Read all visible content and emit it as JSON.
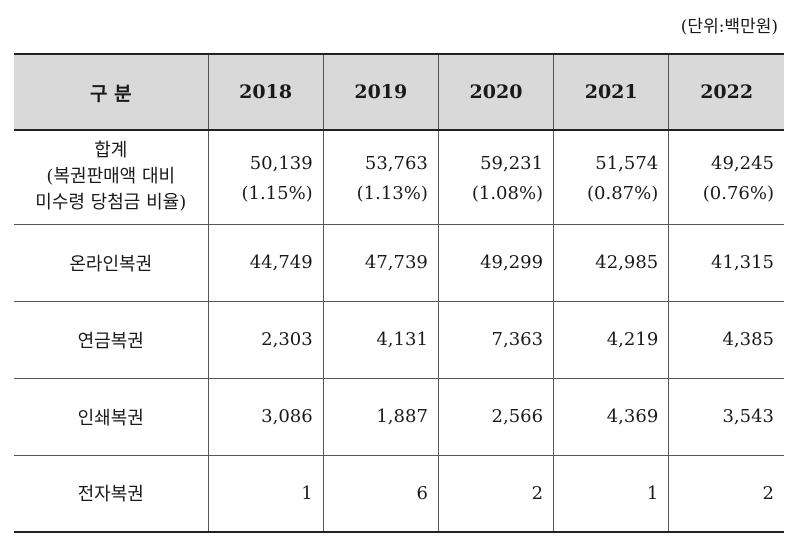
{
  "unit_note": "(단위:백만원)",
  "table": {
    "header": {
      "label": "구 분",
      "years": [
        "2018",
        "2019",
        "2020",
        "2021",
        "2022"
      ]
    },
    "total_row": {
      "label_lines": [
        "합계",
        "(복권판매액 대비",
        "미수령 당첨금 비율)"
      ],
      "values": [
        "50,139",
        "53,763",
        "59,231",
        "51,574",
        "49,245"
      ],
      "ratios": [
        "(1.15%)",
        "(1.13%)",
        "(1.08%)",
        "(0.87%)",
        "(0.76%)"
      ]
    },
    "rows": [
      {
        "label": "온라인복권",
        "values": [
          "44,749",
          "47,739",
          "49,299",
          "42,985",
          "41,315"
        ]
      },
      {
        "label": "연금복권",
        "values": [
          "2,303",
          "4,131",
          "7,363",
          "4,219",
          "4,385"
        ]
      },
      {
        "label": "인쇄복권",
        "values": [
          "3,086",
          "1,887",
          "2,566",
          "4,369",
          "3,543"
        ]
      },
      {
        "label": "전자복권",
        "values": [
          "1",
          "6",
          "2",
          "1",
          "2"
        ]
      }
    ]
  }
}
